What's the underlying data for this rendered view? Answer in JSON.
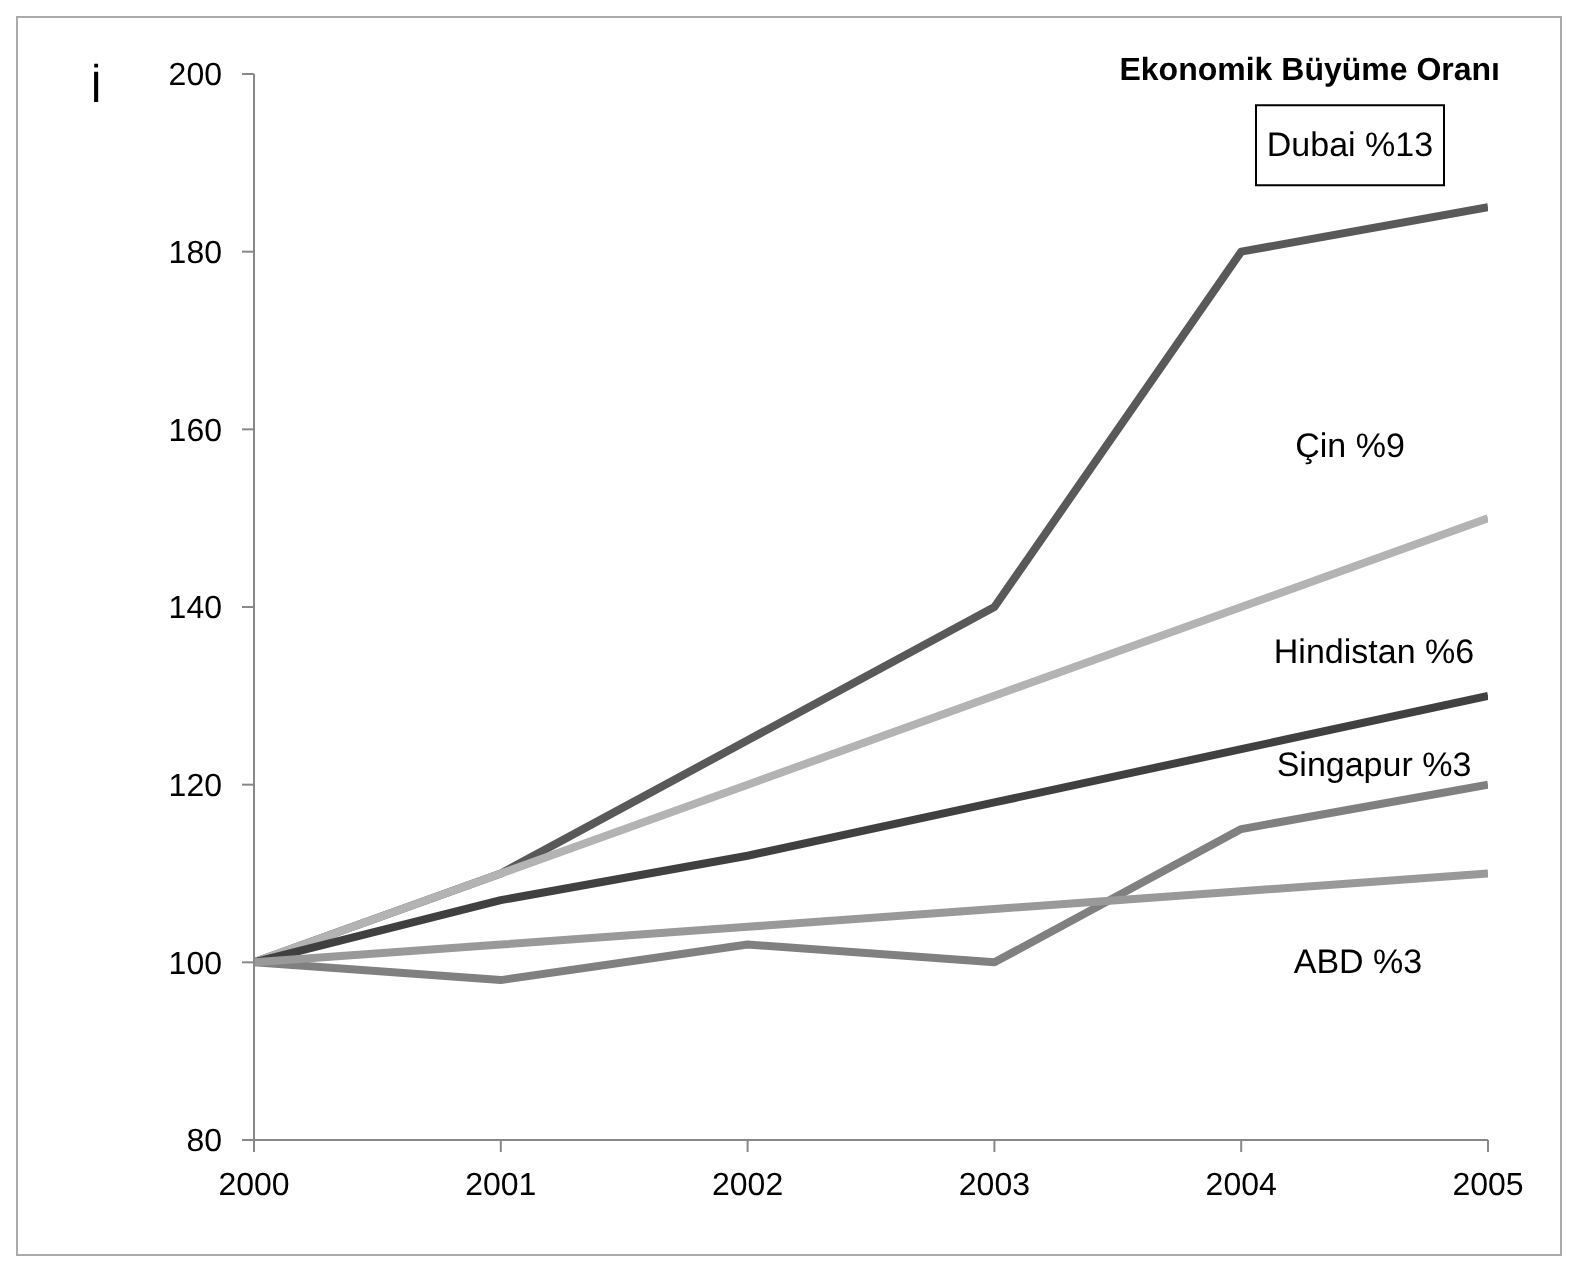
{
  "chart_data": {
    "type": "line",
    "title": "Ekonomik Büyüme Oranı",
    "ylabel": "İ",
    "x": [
      2000,
      2001,
      2002,
      2003,
      2004,
      2005
    ],
    "xlim": [
      2000,
      2005
    ],
    "xticks": [
      2000,
      2001,
      2002,
      2003,
      2004,
      2005
    ],
    "ylim": [
      80,
      200
    ],
    "yticks": [
      80,
      100,
      120,
      140,
      160,
      180,
      200
    ],
    "grid": false,
    "legend": false,
    "marker": "none",
    "line_style": "solid",
    "series": [
      {
        "name": "Dubai %13",
        "color": "#595959",
        "values": [
          100,
          110,
          125,
          140,
          180,
          185
        ]
      },
      {
        "name": "Çin %9",
        "color": "#b3b3b3",
        "values": [
          100,
          110,
          120,
          130,
          140,
          150
        ]
      },
      {
        "name": "Hindistan %6",
        "color": "#404040",
        "values": [
          100,
          107,
          112,
          118,
          124,
          130
        ]
      },
      {
        "name": "Singapur %3",
        "color": "#808080",
        "values": [
          100,
          98,
          102,
          100,
          115,
          120
        ]
      },
      {
        "name": "ABD %3",
        "color": "#999999",
        "values": [
          100,
          102,
          104,
          106,
          108,
          110
        ]
      }
    ]
  }
}
